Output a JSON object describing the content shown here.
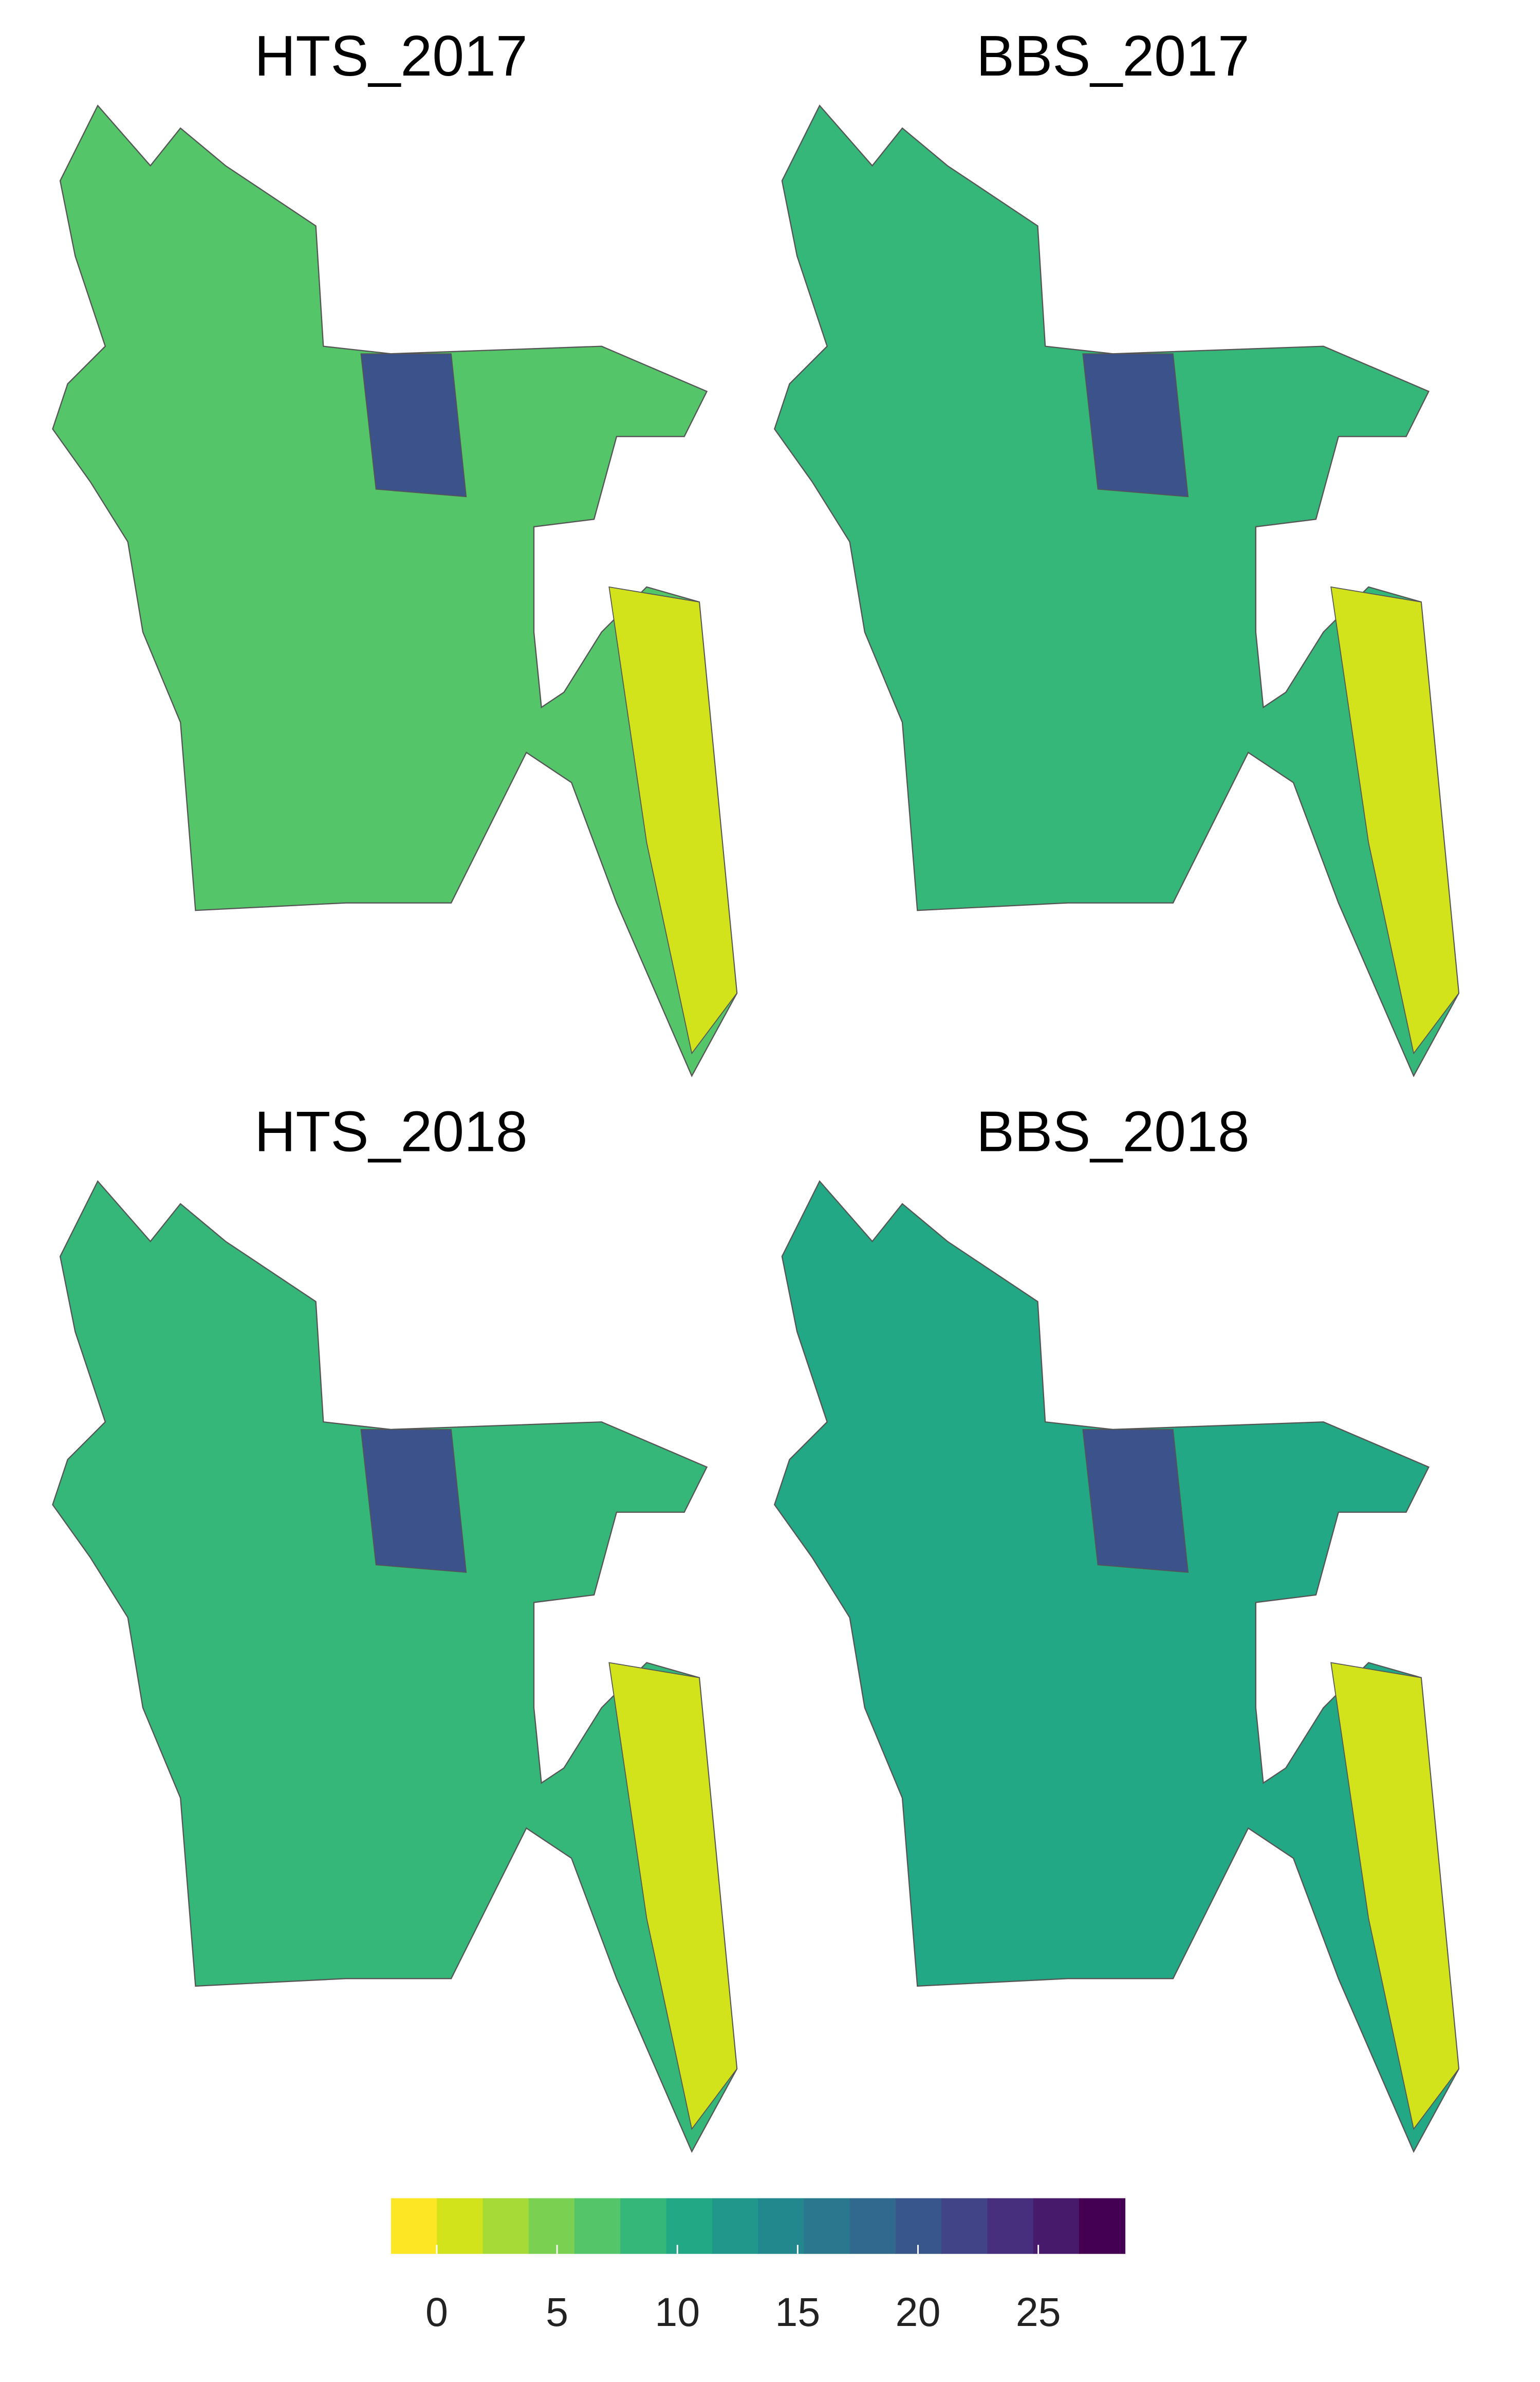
{
  "panels": [
    {
      "title": "HTS_2017"
    },
    {
      "title": "BBS_2017"
    },
    {
      "title": "HTS_2018"
    },
    {
      "title": "BBS_2018"
    }
  ],
  "legend": {
    "lim": [
      -1.9,
      28.6
    ],
    "ticks": [
      0,
      5,
      10,
      15,
      20,
      25
    ],
    "colors": [
      "#FDE725",
      "#D2E21B",
      "#A5DB36",
      "#7AD151",
      "#54C568",
      "#35B779",
      "#22A884",
      "#1F988B",
      "#23888E",
      "#2A788E",
      "#31688E",
      "#39568C",
      "#414487",
      "#472F7D",
      "#481A6C",
      "#440154"
    ]
  }
}
